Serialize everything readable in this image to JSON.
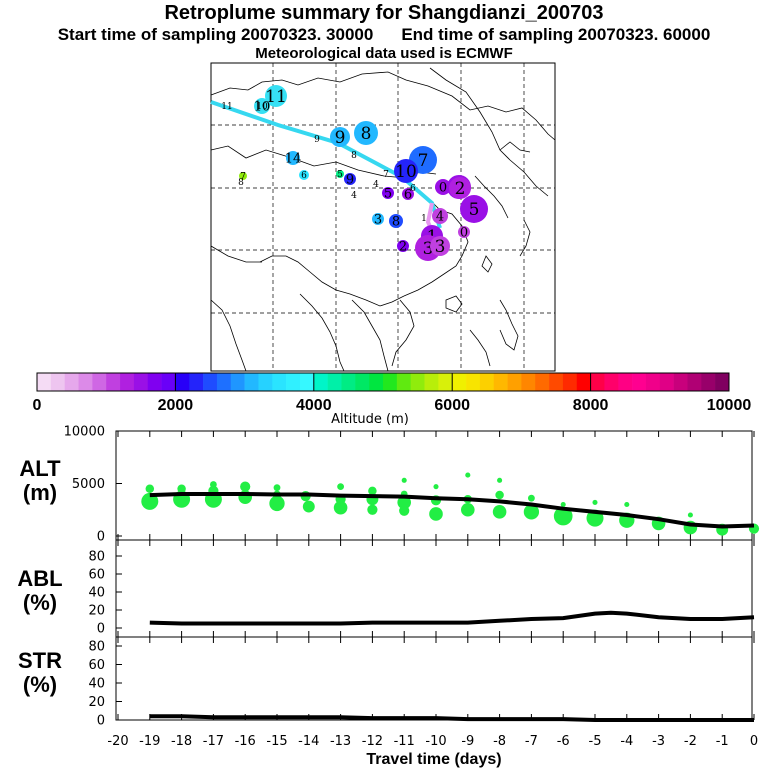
{
  "title": "Retroplume summary for Shangdianzi_200703",
  "sampling_start": "Start time of sampling 20070323. 30000",
  "sampling_end": "End time of sampling 20070323. 60000",
  "met_data": "Meteorological data used is ECMWF",
  "colorbar": {
    "ticks": [
      "0",
      "2000",
      "4000",
      "6000",
      "8000",
      "10000"
    ],
    "label": "Altitude (m)",
    "colors": [
      "#f5dcf5",
      "#eec5f0",
      "#e6a8ec",
      "#dc8ae8",
      "#cf67e4",
      "#c040e0",
      "#b020e0",
      "#9a10e6",
      "#8000f0",
      "#6a00f8",
      "#2800f8",
      "#2424fa",
      "#1f4cff",
      "#1e70ff",
      "#1f96ff",
      "#22b8ff",
      "#26d2ff",
      "#2ae4ff",
      "#30f0ff",
      "#36f8ff",
      "#00f5c8",
      "#00f0a8",
      "#00ec84",
      "#00e864",
      "#00e640",
      "#22e81e",
      "#60ea10",
      "#90ec0c",
      "#b8ee0a",
      "#d8f00a",
      "#f0f000",
      "#f8e400",
      "#fcd000",
      "#ffb800",
      "#ffa000",
      "#ff8600",
      "#ff6a00",
      "#ff4a00",
      "#ff2a00",
      "#ff0000",
      "#ff0048",
      "#ff006a",
      "#ff0084",
      "#ff0090",
      "#f0008a",
      "#e00086",
      "#c8007c",
      "#b00074",
      "#98006a",
      "#800060"
    ]
  },
  "map": {
    "points": [
      {
        "label": "11",
        "color": "#36e0f4",
        "r": 11
      },
      {
        "label": "10",
        "color": "#36e0f4",
        "r": 8
      },
      {
        "label": "11",
        "color": "#2a9aff",
        "r": 0
      },
      {
        "label": "10",
        "color": "#2a9aff",
        "r": 0
      },
      {
        "label": "9",
        "color": "#2a9aff",
        "r": 0
      },
      {
        "label": "9",
        "color": "#22b8ff",
        "r": 10
      },
      {
        "label": "8",
        "color": "#22b8ff",
        "r": 12
      },
      {
        "label": "8",
        "color": "#22b8ff",
        "r": 0
      },
      {
        "label": "7",
        "color": "#1f6cff",
        "r": 14
      },
      {
        "label": "10",
        "color": "#2424fa",
        "r": 12
      },
      {
        "label": "14",
        "color": "#22b8ff",
        "r": 7
      },
      {
        "label": "6",
        "color": "#2ae4ff",
        "r": 5
      },
      {
        "label": "5",
        "color": "#00ec84",
        "r": 4
      },
      {
        "label": "9",
        "color": "#2424fa",
        "r": 6
      },
      {
        "label": "4",
        "color": "#ffffff",
        "r": 0
      },
      {
        "label": "7",
        "color": "#90ec0c",
        "r": 4
      },
      {
        "label": "8",
        "color": "#90ec0c",
        "r": 0
      },
      {
        "label": "4",
        "color": "#ffffff",
        "r": 0
      },
      {
        "label": "7",
        "color": "#ffffff",
        "r": 0
      },
      {
        "label": "5",
        "color": "#8000f0",
        "r": 6
      },
      {
        "label": "6",
        "color": "#9a10e6",
        "r": 6
      },
      {
        "label": "6",
        "color": "#ffffff",
        "r": 0
      },
      {
        "label": "0",
        "color": "#9a10e6",
        "r": 8
      },
      {
        "label": "6",
        "color": "#9a10e6",
        "r": 12
      },
      {
        "label": "2",
        "color": "#b020e0",
        "r": 11
      },
      {
        "label": "5",
        "color": "#9a10e6",
        "r": 14
      },
      {
        "label": "3",
        "color": "#22b8ff",
        "r": 6
      },
      {
        "label": "8",
        "color": "#1f4cff",
        "r": 7
      },
      {
        "label": "1",
        "color": "#ffffff",
        "r": 0
      },
      {
        "label": "4",
        "color": "#c040e0",
        "r": 8
      },
      {
        "label": "1",
        "color": "#9a10e6",
        "r": 11
      },
      {
        "label": "2",
        "color": "#8000f0",
        "r": 6
      },
      {
        "label": "3",
        "color": "#b020e0",
        "r": 13
      },
      {
        "label": "3",
        "color": "#c040e0",
        "r": 10
      },
      {
        "label": "0",
        "color": "#c040e0",
        "r": 6
      }
    ]
  },
  "chart_data": [
    {
      "type": "scatter",
      "panel": "ALT",
      "ylabel": "ALT",
      "yunit": "(m)",
      "ylim": [
        0,
        10000
      ],
      "yticks": [
        "0",
        "5000",
        "10000"
      ],
      "xlim": [
        -20,
        0
      ],
      "mean_line": {
        "x": [
          -19,
          -18,
          -17,
          -16,
          -15,
          -14,
          -13,
          -12,
          -11,
          -10,
          -9,
          -8,
          -7,
          -6,
          -5,
          -4,
          -3,
          -2,
          -1,
          0
        ],
        "y": [
          3900,
          4000,
          4000,
          4000,
          3950,
          3950,
          3850,
          3800,
          3750,
          3600,
          3500,
          3300,
          3000,
          2600,
          2300,
          2000,
          1600,
          1100,
          900,
          1000
        ]
      },
      "scatter_points": {
        "x": [
          -19,
          -19,
          -18,
          -18,
          -17,
          -17,
          -17,
          -16,
          -16,
          -15,
          -15,
          -15,
          -14.1,
          -14,
          -13,
          -13,
          -13,
          -12,
          -12,
          -12,
          -11,
          -11,
          -11,
          -11,
          -10,
          -10,
          -10,
          -9,
          -9,
          -9,
          -8,
          -8,
          -8,
          -7,
          -7,
          -6,
          -6,
          -5,
          -5,
          -4,
          -4,
          -3,
          -2,
          -2,
          -1,
          0
        ],
        "y": [
          3300,
          4500,
          3500,
          4500,
          3500,
          4300,
          4900,
          3700,
          4700,
          3100,
          3900,
          4600,
          3800,
          2800,
          2700,
          3500,
          4700,
          3500,
          2500,
          4300,
          3200,
          2400,
          4000,
          5300,
          2100,
          3400,
          4700,
          2500,
          3500,
          5800,
          2300,
          3900,
          5300,
          2300,
          3600,
          1900,
          3000,
          1700,
          3200,
          1500,
          3000,
          1200,
          800,
          2000,
          600,
          700
        ],
        "size": [
          10,
          5,
          10,
          5,
          10,
          6,
          4,
          8,
          6,
          9,
          5,
          4,
          6,
          7,
          8,
          6,
          4,
          7,
          6,
          5,
          8,
          6,
          4,
          3,
          8,
          6,
          3,
          8,
          5,
          3,
          8,
          5,
          3,
          9,
          4,
          11,
          3,
          10,
          3,
          9,
          3,
          8,
          8,
          3,
          7,
          6
        ]
      }
    },
    {
      "type": "line",
      "panel": "ABL",
      "ylabel": "ABL",
      "yunit": "(%)",
      "ylim": [
        0,
        100
      ],
      "yticks": [
        "0",
        "20",
        "40",
        "60",
        "80"
      ],
      "xlim": [
        -20,
        0
      ],
      "x": [
        -19,
        -18,
        -17,
        -16,
        -15,
        -14,
        -13,
        -12,
        -11,
        -10,
        -9,
        -8,
        -7,
        -6,
        -5,
        -4.5,
        -4,
        -3,
        -2,
        -1,
        0
      ],
      "y": [
        6,
        5,
        5,
        5,
        5,
        5,
        5,
        6,
        6,
        6,
        6,
        8,
        10,
        11,
        16,
        17,
        16,
        12,
        10,
        10,
        12
      ]
    },
    {
      "type": "line",
      "panel": "STR",
      "ylabel": "STR",
      "yunit": "(%)",
      "ylim": [
        0,
        100
      ],
      "yticks": [
        "0",
        "20",
        "40",
        "60",
        "80"
      ],
      "xlim": [
        -20,
        0
      ],
      "xlabel": "Travel time (days)",
      "xticks": [
        "-20",
        "-19",
        "-18",
        "-17",
        "-16",
        "-15",
        "-14",
        "-13",
        "-12",
        "-11",
        "-10",
        "-9",
        "-8",
        "-7",
        "-6",
        "-5",
        "-4",
        "-3",
        "-2",
        "-1",
        "0"
      ],
      "x": [
        -19,
        -18,
        -17,
        -16,
        -15,
        -14,
        -13,
        -12,
        -11,
        -10,
        -9,
        -8,
        -7,
        -6,
        -5,
        -4,
        -3,
        -2,
        -1,
        0
      ],
      "y": [
        4,
        4,
        3,
        3,
        3,
        3,
        3,
        2,
        2,
        2,
        1,
        1,
        1,
        1,
        0,
        0,
        0,
        0,
        0,
        0
      ]
    }
  ]
}
